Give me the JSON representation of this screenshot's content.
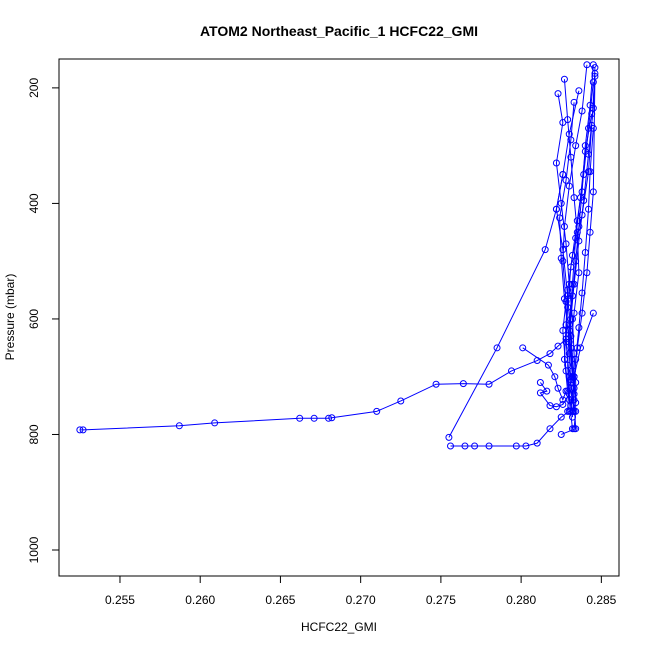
{
  "chart_data": {
    "type": "line",
    "title": "ATOM2 Northeast_Pacific_1 HCFC22_GMI",
    "xlabel": "HCFC22_GMI",
    "ylabel": "Pressure (mbar)",
    "xlim": [
      0.2512,
      0.2861
    ],
    "ylim": [
      1045,
      150
    ],
    "y_reversed": true,
    "xticks": [
      0.255,
      0.26,
      0.265,
      0.27,
      0.275,
      0.28,
      0.285
    ],
    "xtick_labels": [
      "0.255",
      "0.260",
      "0.265",
      "0.270",
      "0.275",
      "0.280",
      "0.285"
    ],
    "yticks": [
      200,
      400,
      600,
      800,
      1000
    ],
    "ytick_labels": [
      "200",
      "400",
      "600",
      "800",
      "1000"
    ],
    "grid": false,
    "legend": "none",
    "series_color": "#0000ff",
    "marker": "open-circle",
    "series": [
      {
        "values": [
          [
            0.2845,
            160
          ],
          [
            0.2843,
            230
          ],
          [
            0.284,
            300
          ],
          [
            0.2838,
            380
          ],
          [
            0.2836,
            440
          ],
          [
            0.2834,
            500
          ],
          [
            0.2832,
            560
          ],
          [
            0.283,
            620
          ],
          [
            0.2832,
            690
          ],
          [
            0.2833,
            740
          ],
          [
            0.2834,
            790
          ],
          [
            0.2825,
            800
          ]
        ]
      },
      {
        "values": [
          [
            0.2823,
            210
          ],
          [
            0.2826,
            260
          ],
          [
            0.2822,
            330
          ],
          [
            0.2825,
            400
          ],
          [
            0.2828,
            470
          ],
          [
            0.283,
            540
          ],
          [
            0.2832,
            600
          ],
          [
            0.2833,
            660
          ],
          [
            0.2834,
            710
          ],
          [
            0.2834,
            760
          ],
          [
            0.2833,
            790
          ]
        ]
      },
      {
        "values": [
          [
            0.2836,
            205
          ],
          [
            0.283,
            280
          ],
          [
            0.2826,
            350
          ],
          [
            0.2822,
            410
          ],
          [
            0.2826,
            480
          ],
          [
            0.2829,
            560
          ],
          [
            0.2831,
            630
          ],
          [
            0.2833,
            700
          ],
          [
            0.2831,
            760
          ]
        ]
      },
      {
        "values": [
          [
            0.2844,
            245
          ],
          [
            0.284,
            310
          ],
          [
            0.2837,
            390
          ],
          [
            0.2834,
            460
          ],
          [
            0.2832,
            540
          ],
          [
            0.283,
            610
          ],
          [
            0.2829,
            680
          ],
          [
            0.283,
            740
          ],
          [
            0.2832,
            790
          ]
        ]
      },
      {
        "values": [
          [
            0.2845,
            190
          ],
          [
            0.2842,
            270
          ],
          [
            0.2839,
            350
          ],
          [
            0.2835,
            430
          ],
          [
            0.2831,
            510
          ],
          [
            0.2829,
            580
          ],
          [
            0.2828,
            640
          ],
          [
            0.283,
            700
          ],
          [
            0.2829,
            760
          ]
        ]
      },
      {
        "values": [
          [
            0.2827,
            185
          ],
          [
            0.2829,
            255
          ],
          [
            0.2831,
            320
          ],
          [
            0.2833,
            390
          ],
          [
            0.2835,
            450
          ],
          [
            0.2836,
            520
          ],
          [
            0.2833,
            590
          ],
          [
            0.2831,
            650
          ],
          [
            0.2833,
            720
          ],
          [
            0.2832,
            770
          ]
        ]
      },
      {
        "values": [
          [
            0.2841,
            160
          ],
          [
            0.2838,
            240
          ],
          [
            0.2834,
            300
          ],
          [
            0.283,
            370
          ],
          [
            0.2827,
            440
          ],
          [
            0.2826,
            500
          ],
          [
            0.2828,
            570
          ],
          [
            0.2826,
            620
          ],
          [
            0.2828,
            690
          ],
          [
            0.2831,
            750
          ]
        ]
      },
      {
        "values": [
          [
            0.2846,
            175
          ],
          [
            0.2844,
            265
          ],
          [
            0.2842,
            345
          ],
          [
            0.2838,
            420
          ],
          [
            0.2832,
            490
          ],
          [
            0.2829,
            550
          ],
          [
            0.2828,
            610
          ],
          [
            0.2827,
            670
          ],
          [
            0.2829,
            725
          ],
          [
            0.2832,
            760
          ]
        ]
      },
      {
        "values": [
          [
            0.2846,
            165
          ],
          [
            0.2845,
            235
          ],
          [
            0.2842,
            315
          ],
          [
            0.2839,
            395
          ],
          [
            0.2836,
            465
          ],
          [
            0.2833,
            540
          ],
          [
            0.2831,
            600
          ],
          [
            0.283,
            660
          ],
          [
            0.2831,
            710
          ],
          [
            0.2833,
            760
          ]
        ]
      },
      {
        "values": [
          [
            0.2833,
            225
          ],
          [
            0.2831,
            290
          ],
          [
            0.2828,
            360
          ],
          [
            0.2824,
            425
          ],
          [
            0.2825,
            495
          ],
          [
            0.2827,
            565
          ],
          [
            0.283,
            640
          ],
          [
            0.2832,
            700
          ]
        ]
      },
      {
        "values": [
          [
            0.2845,
            270
          ],
          [
            0.2843,
            345
          ],
          [
            0.2842,
            410
          ],
          [
            0.284,
            485
          ],
          [
            0.2838,
            555
          ],
          [
            0.2836,
            615
          ],
          [
            0.2834,
            670
          ],
          [
            0.2833,
            730
          ]
        ]
      },
      {
        "values": [
          [
            0.2846,
            180
          ],
          [
            0.2845,
            380
          ],
          [
            0.2843,
            450
          ],
          [
            0.2841,
            520
          ],
          [
            0.2838,
            590
          ],
          [
            0.2835,
            650
          ],
          [
            0.2833,
            700
          ],
          [
            0.2834,
            745
          ]
        ]
      },
      {
        "values": [
          [
            0.2525,
            792
          ],
          [
            0.2527,
            792
          ],
          [
            0.2587,
            785
          ],
          [
            0.2609,
            780
          ],
          [
            0.2662,
            772
          ],
          [
            0.2671,
            772
          ],
          [
            0.268,
            772
          ],
          [
            0.2682,
            771
          ],
          [
            0.271,
            760
          ],
          [
            0.2725,
            742
          ],
          [
            0.2747,
            713
          ],
          [
            0.2764,
            712
          ],
          [
            0.278,
            713
          ],
          [
            0.2794,
            690
          ],
          [
            0.281,
            672
          ],
          [
            0.2818,
            660
          ],
          [
            0.2823,
            647
          ],
          [
            0.2828,
            635
          ]
        ]
      },
      {
        "values": [
          [
            0.2801,
            650
          ],
          [
            0.2817,
            680
          ],
          [
            0.2821,
            700
          ],
          [
            0.2823,
            720
          ],
          [
            0.2826,
            740
          ],
          [
            0.2828,
            725
          ],
          [
            0.2833,
            700
          ],
          [
            0.2837,
            650
          ],
          [
            0.2845,
            590
          ]
        ]
      },
      {
        "values": [
          [
            0.2755,
            805
          ],
          [
            0.2785,
            650
          ],
          [
            0.2815,
            480
          ],
          [
            0.2822,
            410
          ],
          [
            0.2826,
            350
          ]
        ]
      },
      {
        "values": [
          [
            0.2756,
            820
          ],
          [
            0.2765,
            820
          ],
          [
            0.2771,
            820
          ],
          [
            0.278,
            820
          ],
          [
            0.2797,
            820
          ],
          [
            0.2803,
            820
          ],
          [
            0.281,
            815
          ],
          [
            0.2818,
            790
          ],
          [
            0.2825,
            770
          ],
          [
            0.283,
            760
          ]
        ]
      },
      {
        "values": [
          [
            0.2812,
            710
          ],
          [
            0.2816,
            725
          ],
          [
            0.2812,
            728
          ],
          [
            0.2818,
            750
          ],
          [
            0.2822,
            752
          ],
          [
            0.2826,
            748
          ],
          [
            0.283,
            730
          ],
          [
            0.2831,
            705
          ]
        ]
      }
    ]
  }
}
